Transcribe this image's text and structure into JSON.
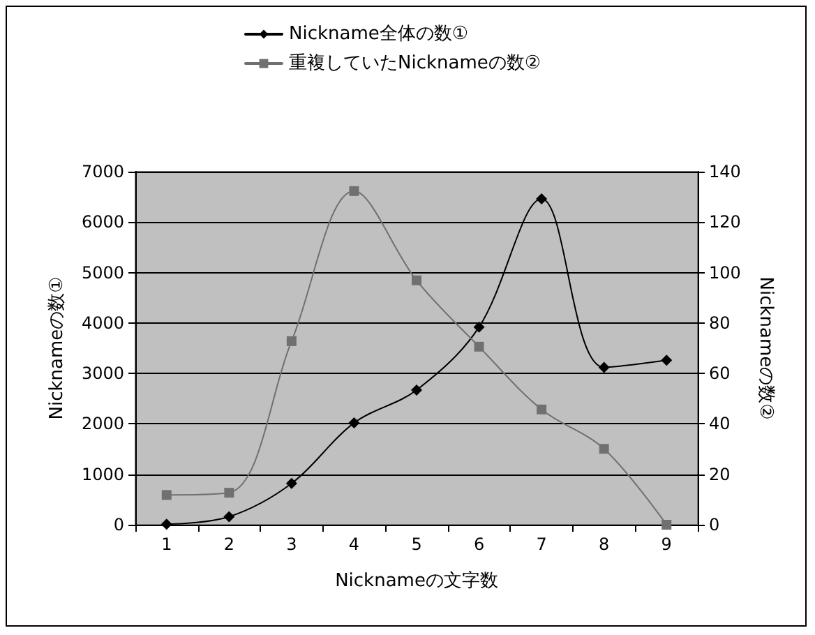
{
  "chart_data": {
    "type": "line",
    "xlabel": "Nicknameの文字数",
    "ylabel": "Nicknameの数①",
    "y2label": "Nicknameの数②",
    "categories": [
      "1",
      "2",
      "3",
      "4",
      "5",
      "6",
      "7",
      "8",
      "9"
    ],
    "series": [
      {
        "name": "Nickname全体の数①",
        "color": "#000000",
        "marker": "diamond",
        "values": [
          10,
          160,
          820,
          2020,
          2670,
          3920,
          6460,
          3120,
          3260
        ]
      },
      {
        "name": "重複していたNicknameの数②",
        "color": "#707070",
        "marker": "square",
        "axis": "y2",
        "values": [
          11.8,
          12.7,
          72.8,
          132.3,
          96.9,
          70.6,
          45.7,
          30.1,
          0
        ]
      }
    ],
    "ylim": [
      0,
      7000
    ],
    "yticks": [
      0,
      1000,
      2000,
      3000,
      4000,
      5000,
      6000,
      7000
    ],
    "y2lim": [
      0,
      140
    ],
    "y2ticks": [
      0,
      20,
      40,
      60,
      80,
      100,
      120,
      140
    ],
    "grid": "y",
    "legend": "top",
    "line_style": "solid"
  }
}
